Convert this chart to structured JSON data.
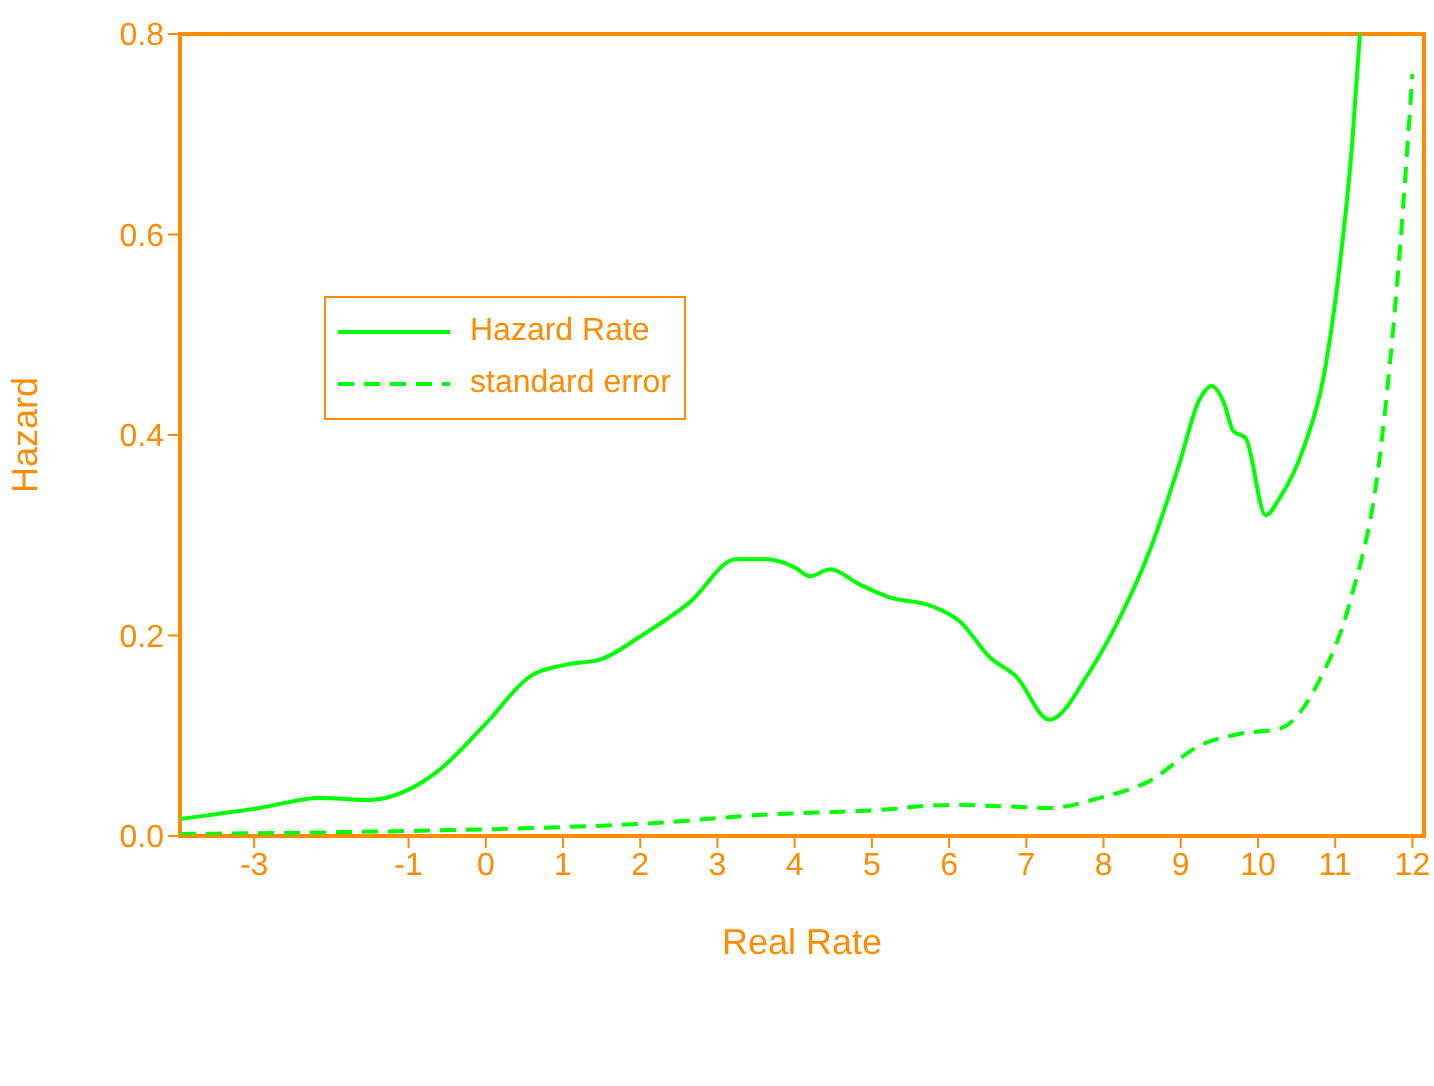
{
  "chart_data": {
    "type": "line",
    "xlabel": "Real Rate",
    "ylabel": "Hazard",
    "xlim": [
      -3.96,
      12.15
    ],
    "xticks": [
      -3,
      -1,
      0,
      1,
      2,
      3,
      4,
      5,
      6,
      7,
      8,
      9,
      10,
      11,
      12
    ],
    "ylim": [
      0,
      0.8
    ],
    "yticks": [
      {
        "value": 0,
        "label": "0.0"
      },
      0.2,
      0.4,
      0.6,
      0.8
    ],
    "grid": false,
    "legend": "top left",
    "color": "#ff8c00",
    "series": [
      {
        "name": "Hazard Rate",
        "color": "#00ff00",
        "line_style": "solid",
        "x": [
          -3.96,
          -2.93,
          -2.15,
          -1.5,
          -0.98,
          -0.6,
          0,
          0.57,
          1.04,
          1.48,
          2,
          2.64,
          3.24,
          3.63,
          4,
          4.2,
          4.46,
          4.84,
          5.23,
          5.75,
          6.14,
          6.53,
          6.87,
          7.3,
          7.82,
          8.2,
          8.6,
          8.98,
          9.24,
          9.4,
          9.56,
          9.68,
          9.84,
          10.1,
          10.28,
          10.6,
          10.85,
          11.06,
          11.22,
          11.32
        ],
        "values": [
          0.017,
          0.028,
          0.038,
          0.036,
          0.047,
          0.066,
          0.112,
          0.159,
          0.171,
          0.176,
          0.199,
          0.233,
          0.276,
          0.276,
          0.268,
          0.259,
          0.266,
          0.251,
          0.238,
          0.23,
          0.214,
          0.178,
          0.159,
          0.116,
          0.164,
          0.216,
          0.285,
          0.371,
          0.435,
          0.449,
          0.432,
          0.404,
          0.397,
          0.32,
          0.337,
          0.389,
          0.458,
          0.57,
          0.691,
          0.8
        ]
      },
      {
        "name": "standard error",
        "color": "#00ff00",
        "line_style": "dashed",
        "x": [
          -3.96,
          -1,
          1.04,
          2,
          3.55,
          5.1,
          6,
          6.92,
          7.3,
          7.95,
          8.6,
          9.24,
          9.77,
          10.28,
          10.8,
          11.19,
          11.58,
          11.84,
          12
        ],
        "values": [
          0.002,
          0.005,
          0.009,
          0.012,
          0.021,
          0.026,
          0.031,
          0.029,
          0.028,
          0.038,
          0.055,
          0.09,
          0.102,
          0.107,
          0.156,
          0.233,
          0.38,
          0.587,
          0.76
        ]
      }
    ]
  }
}
